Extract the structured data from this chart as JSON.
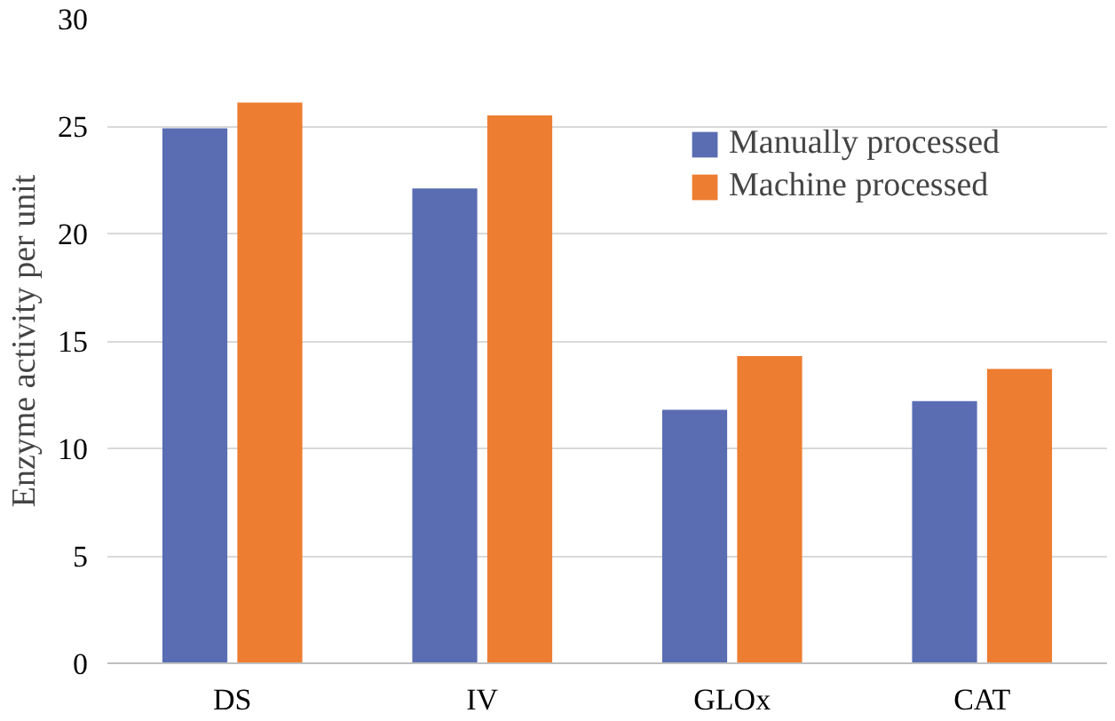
{
  "chart_data": {
    "type": "bar",
    "ylabel": "Enzyme activity per unit",
    "categories": [
      "DS",
      "IV",
      "GLOx",
      "CAT"
    ],
    "series": [
      {
        "name": "Manually processed",
        "color": "#5a6db3",
        "values": [
          24.9,
          22.1,
          11.8,
          12.2
        ]
      },
      {
        "name": "Machine processed",
        "color": "#ed7d31",
        "values": [
          26.1,
          25.5,
          14.3,
          13.7
        ]
      }
    ],
    "ylim": [
      0,
      30
    ],
    "yticks": [
      0,
      5,
      10,
      15,
      20,
      25,
      30
    ],
    "grid": "y",
    "legend": "top right"
  }
}
